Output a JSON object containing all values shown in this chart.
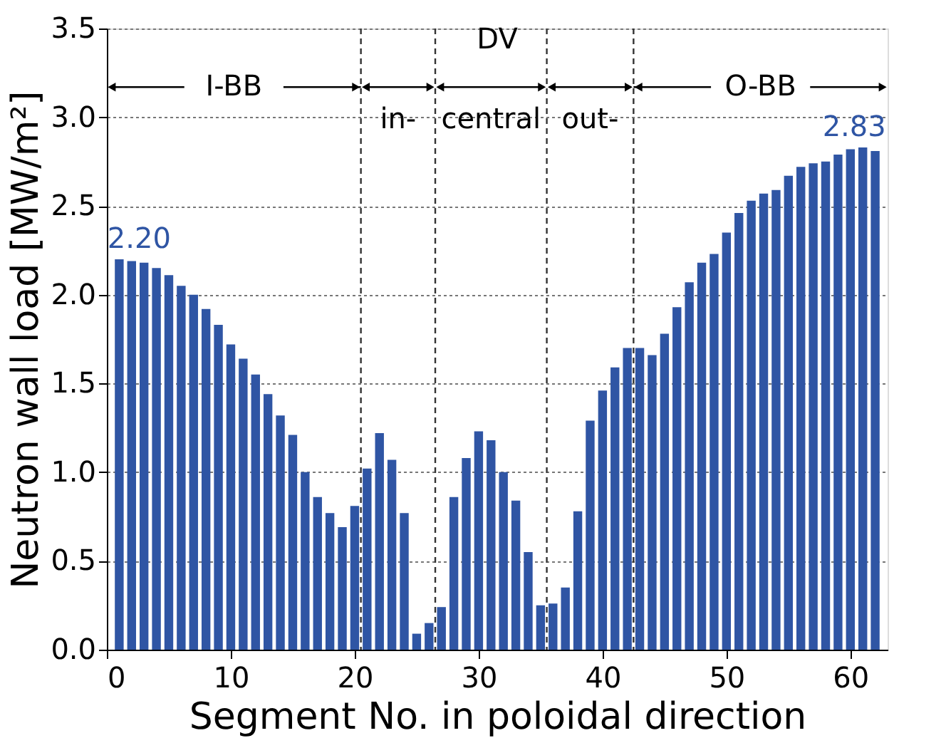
{
  "chart_data": {
    "type": "bar",
    "xlabel": "Segment No. in poloidal direction",
    "ylabel": "Neutron wall load [MW/m²]",
    "x": [
      1,
      2,
      3,
      4,
      5,
      6,
      7,
      8,
      9,
      10,
      11,
      12,
      13,
      14,
      15,
      16,
      17,
      18,
      19,
      20,
      21,
      22,
      23,
      24,
      25,
      26,
      27,
      28,
      29,
      30,
      31,
      32,
      33,
      34,
      35,
      36,
      37,
      38,
      39,
      40,
      41,
      42,
      43,
      44,
      45,
      46,
      47,
      48,
      49,
      50,
      51,
      52,
      53,
      54,
      55,
      56,
      57,
      58,
      59,
      60,
      61,
      62
    ],
    "values": [
      2.2,
      2.19,
      2.18,
      2.15,
      2.11,
      2.05,
      2.0,
      1.92,
      1.83,
      1.72,
      1.64,
      1.55,
      1.44,
      1.32,
      1.21,
      1.0,
      0.86,
      0.77,
      0.69,
      0.81,
      1.02,
      1.22,
      1.07,
      0.77,
      0.09,
      0.15,
      0.24,
      0.86,
      1.08,
      1.23,
      1.18,
      1.0,
      0.84,
      0.55,
      0.25,
      0.26,
      0.35,
      0.78,
      1.29,
      1.46,
      1.59,
      1.7,
      1.7,
      1.66,
      1.78,
      1.93,
      2.07,
      2.18,
      2.23,
      2.35,
      2.46,
      2.53,
      2.57,
      2.59,
      2.67,
      2.72,
      2.74,
      2.75,
      2.79,
      2.82,
      2.83,
      2.81
    ],
    "value_labels": [
      "2.20",
      null,
      null,
      null,
      null,
      null,
      null,
      null,
      null,
      null,
      null,
      null,
      null,
      null,
      null,
      null,
      null,
      null,
      null,
      null,
      null,
      null,
      null,
      null,
      null,
      null,
      null,
      null,
      null,
      null,
      null,
      null,
      null,
      null,
      null,
      null,
      null,
      null,
      null,
      null,
      null,
      null,
      null,
      null,
      null,
      null,
      null,
      null,
      null,
      null,
      null,
      null,
      null,
      null,
      null,
      null,
      null,
      null,
      null,
      null,
      "2.83",
      null
    ],
    "color": "#2f55a4",
    "xlim": [
      0,
      63
    ],
    "xticks": [
      0,
      10,
      20,
      30,
      40,
      50,
      60
    ],
    "ylim": [
      0,
      3.5
    ],
    "yticks": [
      {
        "value": 0,
        "label": "0.0"
      },
      0.5,
      {
        "value": 1,
        "label": "1.0"
      },
      1.5,
      {
        "value": 2,
        "label": "2.0"
      },
      2.5,
      {
        "value": 3,
        "label": "3.0"
      },
      3.5
    ],
    "grid": "y",
    "ref_lines": [
      {
        "axis": "x",
        "value": 20.5,
        "line_style": "dashed"
      },
      {
        "axis": "x",
        "value": 26.5,
        "line_style": "dashed"
      },
      {
        "axis": "x",
        "value": 35.5,
        "line_style": "dashed"
      },
      {
        "axis": "x",
        "value": 42.5,
        "line_style": "dashed"
      }
    ],
    "annotations": [
      {
        "text": "I-BB",
        "x": 20.5,
        "y": 3.17
      },
      "DV",
      "in-",
      "central",
      "out-",
      {
        "text": "O-BB",
        "x": 42.5,
        "y": 3.17
      }
    ]
  }
}
